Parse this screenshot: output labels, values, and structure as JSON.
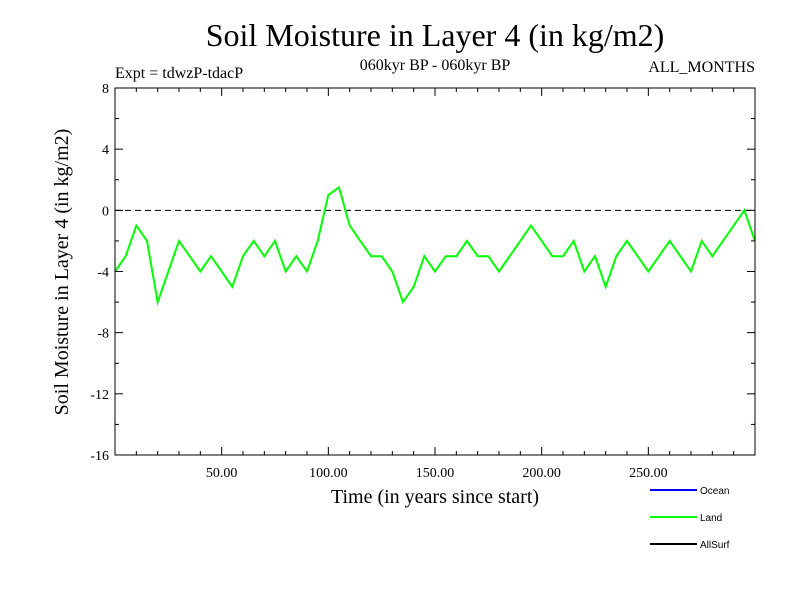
{
  "chart_data": {
    "type": "line",
    "title": "Soil Moisture in Layer 4 (in kg/m2)",
    "subtitle_left": "Expt = tdwzP-tdacP",
    "subtitle_center": "060kyr BP - 060kyr BP",
    "subtitle_right": "ALL_MONTHS",
    "xlabel": "Time (in years since start)",
    "ylabel": "Soil Moisture in Layer 4 (in kg/m2)",
    "xlim": [
      0,
      300
    ],
    "ylim": [
      -16,
      8
    ],
    "x_ticks": [
      50,
      100,
      150,
      200,
      250
    ],
    "x_tick_labels": [
      "50.00",
      "100.00",
      "150.00",
      "200.00",
      "250.00"
    ],
    "y_ticks": [
      -16,
      -12,
      -8,
      -4,
      0,
      4,
      8
    ],
    "y_tick_labels": [
      "-16",
      "-12",
      "-8",
      "-4",
      "0",
      "4",
      "8"
    ],
    "zero_line": {
      "y": 0,
      "style": "dashed"
    },
    "legend_position": "bottom-right",
    "series": [
      {
        "name": "Ocean",
        "color": "#0000ff",
        "x": [],
        "y": []
      },
      {
        "name": "Land",
        "color": "#00ff00",
        "x": [
          0,
          5,
          10,
          15,
          20,
          25,
          30,
          35,
          40,
          45,
          50,
          55,
          60,
          65,
          70,
          75,
          80,
          85,
          90,
          95,
          100,
          105,
          110,
          115,
          120,
          125,
          130,
          135,
          140,
          145,
          150,
          155,
          160,
          165,
          170,
          175,
          180,
          185,
          190,
          195,
          200,
          205,
          210,
          215,
          220,
          225,
          230,
          235,
          240,
          245,
          250,
          255,
          260,
          265,
          270,
          275,
          280,
          285,
          290,
          295,
          300
        ],
        "y": [
          -4,
          -3,
          -1,
          -2,
          -6,
          -4,
          -2,
          -3,
          -4,
          -3,
          -4,
          -5,
          -3,
          -2,
          -3,
          -2,
          -4,
          -3,
          -4,
          -2,
          1,
          1.5,
          -1,
          -2,
          -3,
          -3,
          -4,
          -6,
          -5,
          -3,
          -4,
          -3,
          -3,
          -2,
          -3,
          -3,
          -4,
          -3,
          -2,
          -1,
          -2,
          -3,
          -3,
          -2,
          -4,
          -3,
          -5,
          -3,
          -2,
          -3,
          -4,
          -3,
          -2,
          -3,
          -4,
          -2,
          -3,
          -2,
          -1,
          0,
          -2
        ]
      },
      {
        "name": "AllSurf",
        "color": "#000000",
        "x": [],
        "y": []
      }
    ]
  }
}
